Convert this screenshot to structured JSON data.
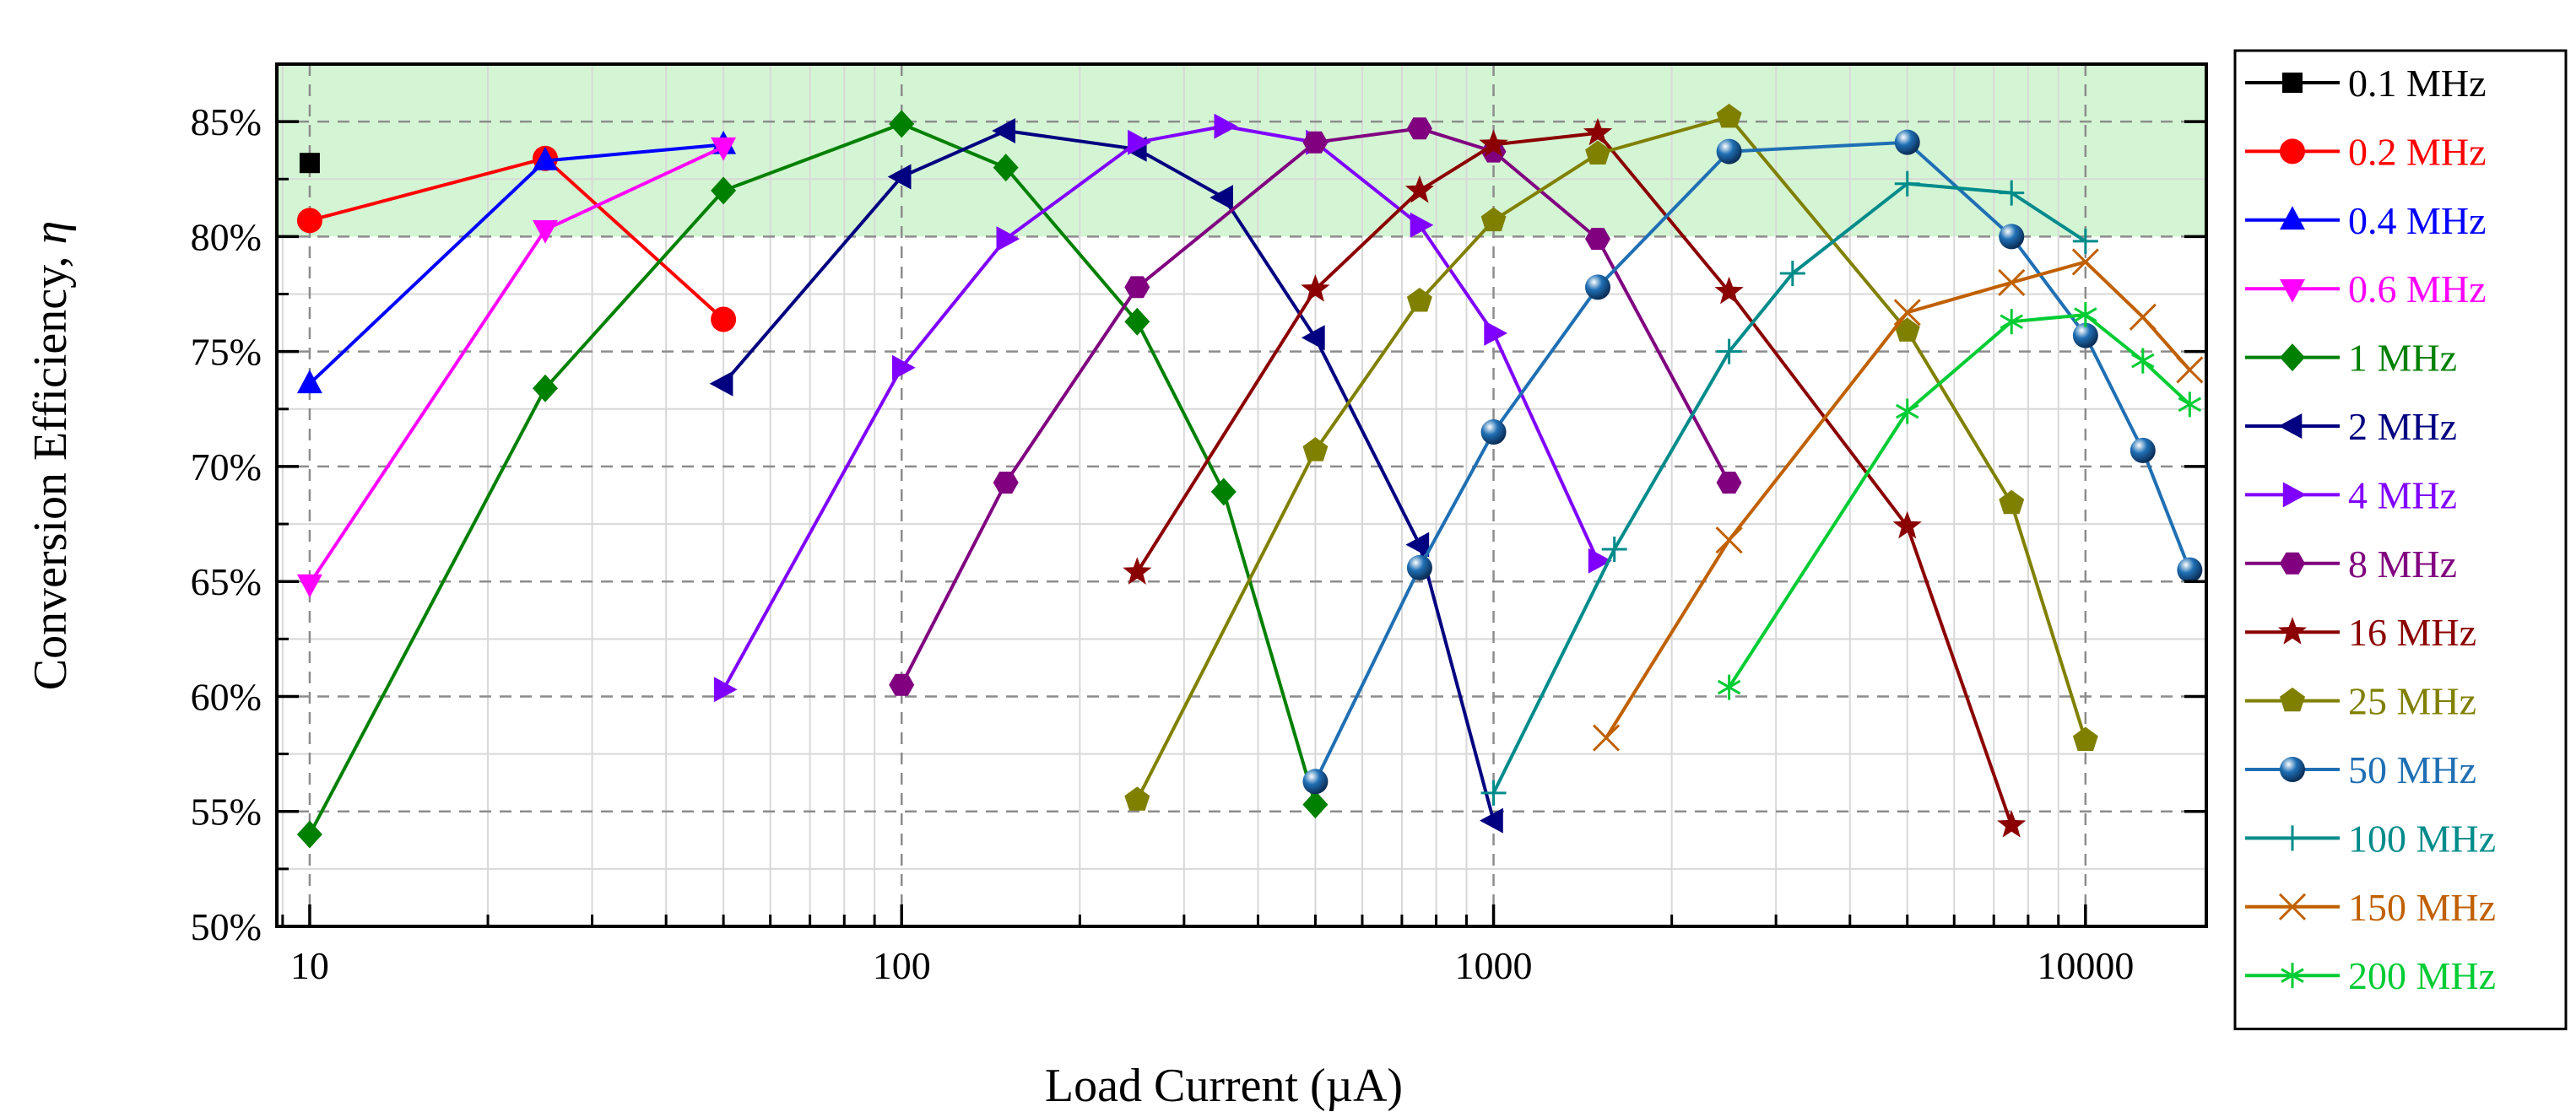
{
  "chart_data": {
    "type": "line",
    "xscale": "log",
    "xlabel": "Load Current (µA)",
    "ylabel_main": "Conversion Efficiency, ",
    "ylabel_symbol": "η",
    "xlim": [
      8.8,
      16000
    ],
    "ylim": [
      50,
      87.5
    ],
    "x_ticks": [
      10,
      100,
      1000,
      10000
    ],
    "x_tick_labels": [
      "10",
      "100",
      "1000",
      "10000"
    ],
    "y_ticks": [
      50,
      55,
      60,
      65,
      70,
      75,
      80,
      85
    ],
    "y_tick_labels": [
      "50%",
      "55%",
      "60%",
      "65%",
      "70%",
      "75%",
      "80%",
      "85%"
    ],
    "highlight_band": {
      "from": 80,
      "to": 87.5,
      "color": "#d4f5d4"
    },
    "grid": true,
    "legend_position": "right-outside",
    "series": [
      {
        "name": "0.1 MHz",
        "color": "#000000",
        "marker": "square",
        "points": [
          [
            10,
            83.2
          ]
        ]
      },
      {
        "name": "0.2 MHz",
        "color": "#ff0000",
        "marker": "circle",
        "points": [
          [
            10,
            80.7
          ],
          [
            25,
            83.4
          ],
          [
            50,
            76.4
          ]
        ]
      },
      {
        "name": "0.4 MHz",
        "color": "#0000ff",
        "marker": "triangle-up",
        "points": [
          [
            10,
            73.6
          ],
          [
            25,
            83.3
          ],
          [
            50,
            84.0
          ]
        ]
      },
      {
        "name": "0.6 MHz",
        "color": "#ff00ff",
        "marker": "triangle-down",
        "points": [
          [
            10,
            64.9
          ],
          [
            25,
            80.3
          ],
          [
            50,
            83.9
          ]
        ]
      },
      {
        "name": "1 MHz",
        "color": "#008000",
        "marker": "diamond",
        "points": [
          [
            10,
            54.0
          ],
          [
            25,
            73.4
          ],
          [
            50,
            82.0
          ],
          [
            100,
            84.9
          ],
          [
            150,
            83.0
          ],
          [
            250,
            76.3
          ],
          [
            350,
            68.9
          ],
          [
            500,
            55.3
          ]
        ]
      },
      {
        "name": "2 MHz",
        "color": "#000080",
        "marker": "triangle-left",
        "points": [
          [
            50,
            73.6
          ],
          [
            100,
            82.6
          ],
          [
            150,
            84.6
          ],
          [
            250,
            83.8
          ],
          [
            350,
            81.7
          ],
          [
            500,
            75.6
          ],
          [
            750,
            66.6
          ],
          [
            1000,
            54.6
          ]
        ]
      },
      {
        "name": "4 MHz",
        "color": "#8000ff",
        "marker": "triangle-right",
        "points": [
          [
            50,
            60.3
          ],
          [
            100,
            74.3
          ],
          [
            150,
            79.9
          ],
          [
            250,
            84.1
          ],
          [
            350,
            84.8
          ],
          [
            500,
            84.1
          ],
          [
            750,
            80.5
          ],
          [
            1000,
            75.8
          ],
          [
            1500,
            65.9
          ]
        ]
      },
      {
        "name": "8 MHz",
        "color": "#800080",
        "marker": "hexagon",
        "points": [
          [
            100,
            60.5
          ],
          [
            150,
            69.3
          ],
          [
            250,
            77.8
          ],
          [
            500,
            84.1
          ],
          [
            750,
            84.7
          ],
          [
            1000,
            83.7
          ],
          [
            1500,
            79.9
          ],
          [
            2500,
            69.3
          ]
        ]
      },
      {
        "name": "16 MHz",
        "color": "#8b0000",
        "marker": "star",
        "points": [
          [
            250,
            65.4
          ],
          [
            500,
            77.7
          ],
          [
            750,
            82.0
          ],
          [
            1000,
            84.0
          ],
          [
            1500,
            84.5
          ],
          [
            2500,
            77.6
          ],
          [
            5000,
            67.4
          ],
          [
            7500,
            54.4
          ]
        ]
      },
      {
        "name": "25 MHz",
        "color": "#808000",
        "marker": "pentagon",
        "points": [
          [
            250,
            55.5
          ],
          [
            500,
            70.7
          ],
          [
            750,
            77.2
          ],
          [
            1000,
            80.7
          ],
          [
            1500,
            83.6
          ],
          [
            2500,
            85.2
          ],
          [
            5000,
            75.9
          ],
          [
            7500,
            68.4
          ],
          [
            10000,
            58.1
          ]
        ]
      },
      {
        "name": "50 MHz",
        "color": "#1f6fb4",
        "marker": "sphere",
        "points": [
          [
            500,
            56.3
          ],
          [
            750,
            65.6
          ],
          [
            1000,
            71.5
          ],
          [
            1500,
            77.8
          ],
          [
            2500,
            83.7
          ],
          [
            5000,
            84.1
          ],
          [
            7500,
            80.0
          ],
          [
            10000,
            75.7
          ],
          [
            12500,
            70.7
          ],
          [
            15000,
            65.5
          ]
        ]
      },
      {
        "name": "100 MHz",
        "color": "#008b8b",
        "marker": "plus",
        "points": [
          [
            1000,
            55.8
          ],
          [
            1600,
            66.4
          ],
          [
            2500,
            75.0
          ],
          [
            3200,
            78.4
          ],
          [
            5000,
            82.3
          ],
          [
            7500,
            81.9
          ],
          [
            10000,
            79.8
          ]
        ]
      },
      {
        "name": "150 MHz",
        "color": "#c06000",
        "marker": "x",
        "points": [
          [
            1550,
            58.2
          ],
          [
            2500,
            66.8
          ],
          [
            5000,
            76.7
          ],
          [
            7500,
            78.0
          ],
          [
            10000,
            78.9
          ],
          [
            12500,
            76.5
          ],
          [
            15000,
            74.2
          ]
        ]
      },
      {
        "name": "200 MHz",
        "color": "#00cc33",
        "marker": "asterisk",
        "points": [
          [
            2500,
            60.4
          ],
          [
            5000,
            72.4
          ],
          [
            7500,
            76.3
          ],
          [
            10000,
            76.6
          ],
          [
            12500,
            74.6
          ],
          [
            15000,
            72.7
          ]
        ]
      }
    ]
  }
}
